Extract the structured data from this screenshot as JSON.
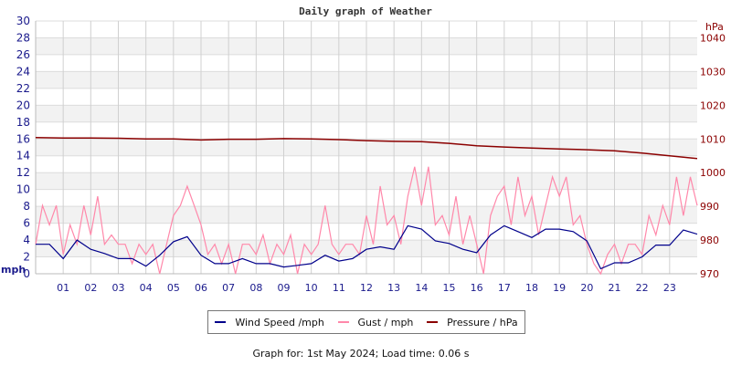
{
  "chart_data": {
    "type": "line",
    "title": "Daily graph of Weather",
    "left_axis": {
      "label": "mph",
      "range": [
        0,
        30
      ],
      "ticks": [
        0,
        2,
        4,
        6,
        8,
        10,
        12,
        14,
        16,
        18,
        20,
        22,
        24,
        26,
        28,
        30
      ],
      "color": "#1a1a8c"
    },
    "right_axis": {
      "label": "hPa",
      "range": [
        970,
        1045
      ],
      "ticks": [
        970,
        980,
        990,
        1000,
        1010,
        1020,
        1030,
        1040
      ],
      "color": "#8b0000"
    },
    "x_axis": {
      "range": [
        0,
        24
      ],
      "tick_labels": [
        "01",
        "02",
        "03",
        "04",
        "05",
        "06",
        "07",
        "08",
        "09",
        "10",
        "11",
        "12",
        "13",
        "14",
        "15",
        "16",
        "17",
        "18",
        "19",
        "20",
        "21",
        "22",
        "23"
      ]
    },
    "grid": true,
    "legend_placement": "bottom",
    "series": [
      {
        "name": "Wind Speed /mph",
        "axis": "left",
        "color": "#00008b",
        "x_step_hours": 0.5,
        "values": [
          3.5,
          3.5,
          1.8,
          4.0,
          2.9,
          2.4,
          1.8,
          1.8,
          0.9,
          2.2,
          3.8,
          4.4,
          2.2,
          1.2,
          1.2,
          1.8,
          1.2,
          1.2,
          0.8,
          1.0,
          1.2,
          2.2,
          1.5,
          1.8,
          2.9,
          3.2,
          2.9,
          5.7,
          5.3,
          3.9,
          3.6,
          2.9,
          2.5,
          4.6,
          5.7,
          5.0,
          4.3,
          5.3,
          5.3,
          5.0,
          3.9,
          0.6,
          1.3,
          1.3,
          2.0,
          3.4,
          3.4,
          5.2,
          4.7
        ]
      },
      {
        "name": "Gust / mph",
        "axis": "left",
        "color": "#ff88aa",
        "x_step_hours": 0.25,
        "values": [
          3.5,
          8.1,
          5.8,
          8.1,
          2.3,
          5.8,
          3.5,
          8.1,
          4.6,
          9.2,
          3.5,
          4.6,
          3.5,
          3.5,
          1.2,
          3.5,
          2.3,
          3.5,
          0.0,
          3.5,
          6.9,
          8.1,
          10.4,
          8.1,
          5.8,
          2.3,
          3.5,
          1.2,
          3.5,
          0.0,
          3.5,
          3.5,
          2.3,
          4.6,
          1.2,
          3.5,
          2.3,
          4.6,
          0.0,
          3.5,
          2.3,
          3.5,
          8.1,
          3.5,
          2.3,
          3.5,
          3.5,
          2.3,
          6.9,
          3.5,
          10.4,
          5.8,
          6.9,
          3.5,
          9.2,
          12.7,
          8.1,
          12.7,
          5.8,
          6.9,
          4.6,
          9.2,
          3.5,
          6.9,
          3.5,
          0.0,
          6.9,
          9.2,
          10.4,
          5.8,
          11.5,
          6.9,
          9.2,
          4.6,
          8.1,
          11.5,
          9.2,
          11.5,
          5.8,
          6.9,
          3.5,
          1.2,
          0.0,
          2.3,
          3.5,
          1.2,
          3.5,
          3.5,
          2.3,
          6.9,
          4.6,
          8.1,
          5.8,
          11.5,
          6.9,
          11.5,
          8.1
        ]
      },
      {
        "name": "Pressure / hPa",
        "axis": "right",
        "color": "#8b0000",
        "x_step_hours": 1,
        "values": [
          1010.4,
          1010.3,
          1010.3,
          1010.2,
          1010.0,
          1010.0,
          1009.7,
          1009.9,
          1009.9,
          1010.1,
          1010.0,
          1009.8,
          1009.5,
          1009.3,
          1009.2,
          1008.7,
          1008.0,
          1007.6,
          1007.3,
          1007.0,
          1006.8,
          1006.5,
          1005.8,
          1005.0,
          1004.2
        ]
      }
    ]
  },
  "legend": {
    "wind": "Wind Speed /mph",
    "gust": "Gust / mph",
    "pressure": "Pressure / hPa"
  },
  "footer": "Graph for: 1st May 2024; Load time: 0.06 s"
}
